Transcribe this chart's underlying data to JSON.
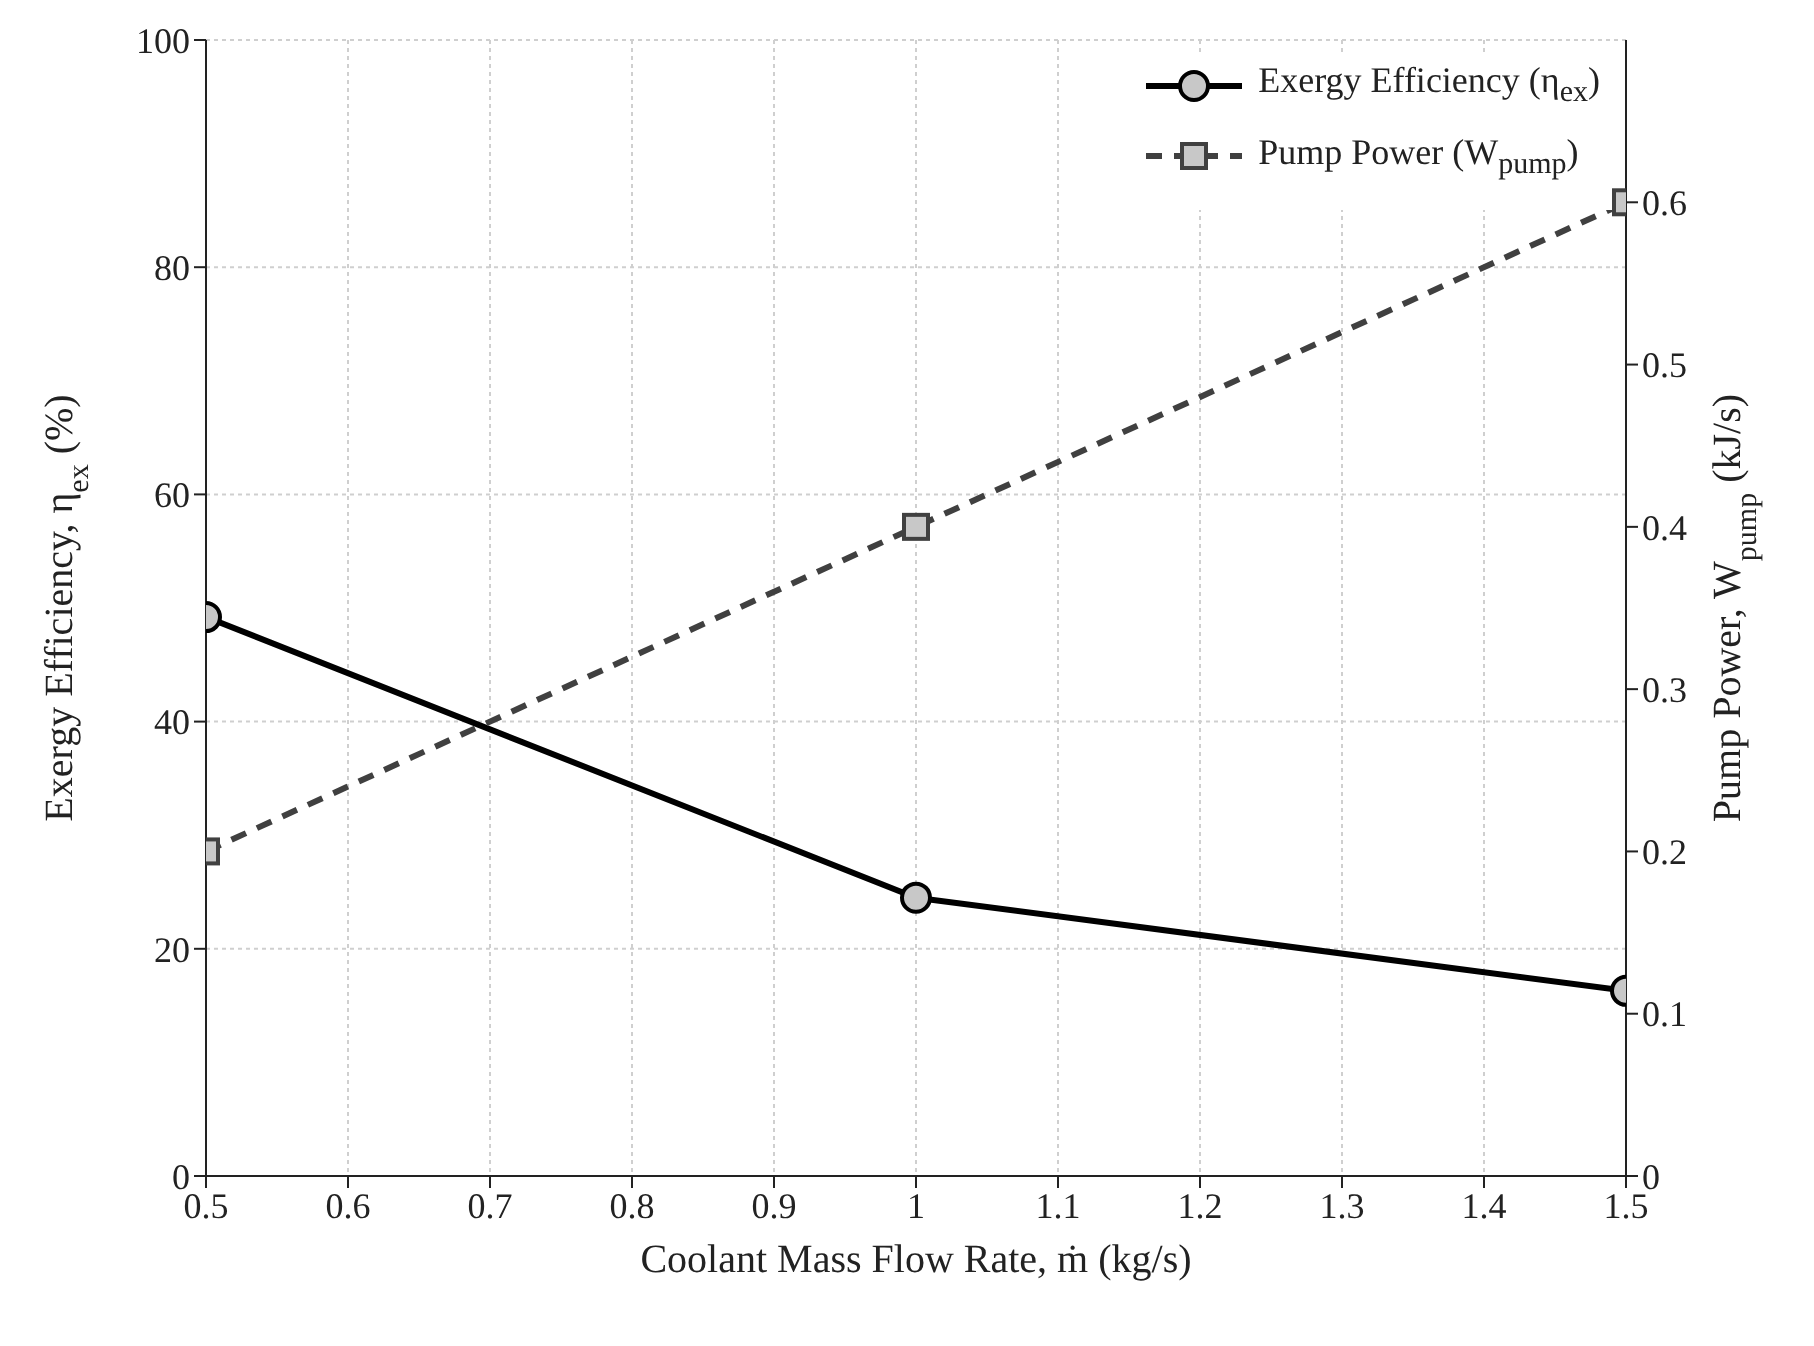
{
  "chart_data": {
    "type": "line",
    "xlabel": "Coolant Mass Flow Rate, ṁ (kg/s)",
    "ylabel": "Exergy Efficiency, η$_{ex}$ (%)",
    "y2label": "Pump Power, W$_{pump}$ (kJ/s)",
    "x": [
      0.5,
      1,
      1.5
    ],
    "series": [
      {
        "name": "Exergy Efficiency (η$_{ex}$)",
        "color": "#000000",
        "values": [
          49.2,
          24.5,
          16.3
        ],
        "marker": "circle",
        "line_style": "solid"
      },
      {
        "name": "Pump Power (W$_{pump}$)",
        "color": "#404040",
        "values": [
          0.2,
          0.4,
          0.6
        ],
        "axis": "y2",
        "marker": "square",
        "line_style": "dashed"
      }
    ],
    "xlim": [
      0.5,
      1.5
    ],
    "xticks": [
      0.5,
      0.6,
      0.7,
      0.8,
      0.9,
      1,
      1.1,
      1.2,
      1.3,
      1.4,
      1.5
    ],
    "ylim": [
      0,
      100
    ],
    "yticks": [
      0,
      20,
      40,
      60,
      80,
      100
    ],
    "y2lim": [
      0,
      0.7
    ],
    "y2ticks": [
      0,
      0.1,
      0.2,
      0.3,
      0.4,
      0.5,
      0.6
    ],
    "grid": true,
    "legend": "top right"
  }
}
